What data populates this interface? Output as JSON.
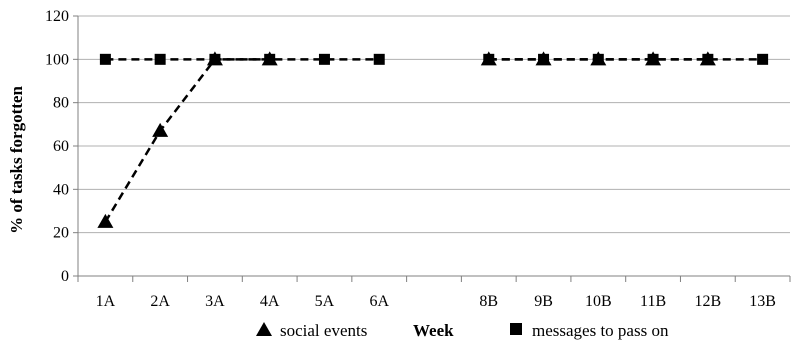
{
  "chart_data": {
    "type": "line",
    "categories": [
      "1A",
      "2A",
      "3A",
      "4A",
      "5A",
      "6A",
      "",
      "8B",
      "9B",
      "10B",
      "11B",
      "12B",
      "13B"
    ],
    "ylabel": "% of tasks forgotten",
    "xlabel": "Week",
    "ylim": [
      0,
      120
    ],
    "yticks": [
      0,
      20,
      40,
      60,
      80,
      100,
      120
    ],
    "grid": "horizontal",
    "legend_position": "bottom",
    "series": [
      {
        "name": "social events",
        "marker": "triangle",
        "values": [
          25,
          67,
          100,
          100,
          null,
          null,
          null,
          100,
          100,
          100,
          100,
          100,
          null
        ]
      },
      {
        "name": "messages to pass on",
        "marker": "square",
        "values": [
          100,
          100,
          100,
          100,
          100,
          100,
          null,
          100,
          100,
          100,
          100,
          100,
          100
        ]
      }
    ]
  }
}
